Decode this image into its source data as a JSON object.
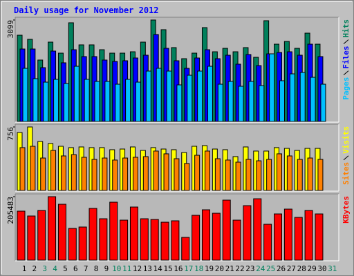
{
  "chart_data": {
    "type": "bar",
    "title": "Daily usage for November 2012",
    "title_color": "#0000ff",
    "categories": [
      1,
      2,
      3,
      4,
      5,
      6,
      7,
      8,
      9,
      10,
      11,
      12,
      13,
      14,
      15,
      16,
      17,
      18,
      19,
      20,
      21,
      22,
      23,
      24,
      25,
      26,
      27,
      28,
      29,
      30,
      31
    ],
    "category_colors": [
      "#000000",
      "#000000",
      "#00805c",
      "#00805c",
      "#000000",
      "#000000",
      "#000000",
      "#000000",
      "#000000",
      "#00805c",
      "#00805c",
      "#000000",
      "#000000",
      "#000000",
      "#000000",
      "#000000",
      "#00805c",
      "#00805c",
      "#000000",
      "#000000",
      "#000000",
      "#000000",
      "#000000",
      "#00805c",
      "#00805c",
      "#000000",
      "#000000",
      "#000000",
      "#000000",
      "#000000",
      "#00805c"
    ],
    "panels": [
      {
        "ylim": [
          0,
          3099
        ],
        "yticks": [
          3099
        ],
        "series": [
          {
            "name": "Hits",
            "color": "#00805c",
            "values": [
              2635,
              2509,
              1876,
              2424,
              2087,
              3015,
              2340,
              2340,
              2192,
              2087,
              2087,
              2129,
              2424,
              3099,
              2804,
              2256,
              1918,
              2087,
              2867,
              2129,
              2234,
              2129,
              2256,
              1960,
              3078,
              2361,
              2445,
              2234,
              2698,
              2361,
              null
            ]
          },
          {
            "name": "Files",
            "color": "#0000ff",
            "values": [
              2213,
              2213,
              1644,
              2150,
              1792,
              2192,
              1982,
              1982,
              1876,
              1834,
              1855,
              1939,
              2024,
              2656,
              2234,
              1855,
              1623,
              1939,
              2192,
              1918,
              2024,
              1750,
              2045,
              1707,
              2066,
              2108,
              2129,
              2024,
              2361,
              1982,
              null
            ]
          },
          {
            "name": "Pages",
            "color": "#00c0ff",
            "values": [
              1623,
              1307,
              1201,
              1286,
              1159,
              1686,
              1286,
              1223,
              1223,
              1138,
              1286,
              1201,
              1539,
              1623,
              1539,
              1117,
              1412,
              1539,
              1686,
              1138,
              1223,
              1075,
              1223,
              1096,
              2066,
              1244,
              1454,
              1497,
              1349,
              1138,
              null
            ]
          }
        ]
      },
      {
        "ylim": [
          0,
          756
        ],
        "yticks": [
          756
        ],
        "series": [
          {
            "name": "Visits",
            "color": "#ffff00",
            "values": [
              690,
              756,
              583,
              559,
              526,
              510,
              518,
              510,
              510,
              485,
              493,
              518,
              477,
              510,
              493,
              485,
              452,
              526,
              534,
              493,
              485,
              403,
              518,
              469,
              469,
              510,
              501,
              477,
              501,
              501,
              null
            ]
          },
          {
            "name": "Sites",
            "color": "#ff8000",
            "values": [
              510,
              526,
              386,
              477,
              411,
              427,
              395,
              370,
              386,
              362,
              386,
              395,
              403,
              469,
              436,
              378,
              321,
              419,
              469,
              378,
              362,
              337,
              370,
              353,
              370,
              436,
              411,
              370,
              386,
              370,
              null
            ]
          }
        ]
      },
      {
        "ylim": [
          0,
          205483
        ],
        "yticks": [
          205483
        ],
        "series": [
          {
            "name": "KBytes",
            "color": "#ff0000",
            "values": [
              158600,
              142900,
              160800,
              205483,
              180900,
              102700,
              107200,
              167500,
              134000,
              187600,
              129500,
              171900,
              134000,
              131700,
              122800,
              127300,
              73700,
              145100,
              163000,
              151800,
              194300,
              129500,
              176400,
              198700,
              116100,
              149600,
              165200,
              138400,
              160800,
              149600,
              null
            ]
          }
        ]
      }
    ]
  }
}
